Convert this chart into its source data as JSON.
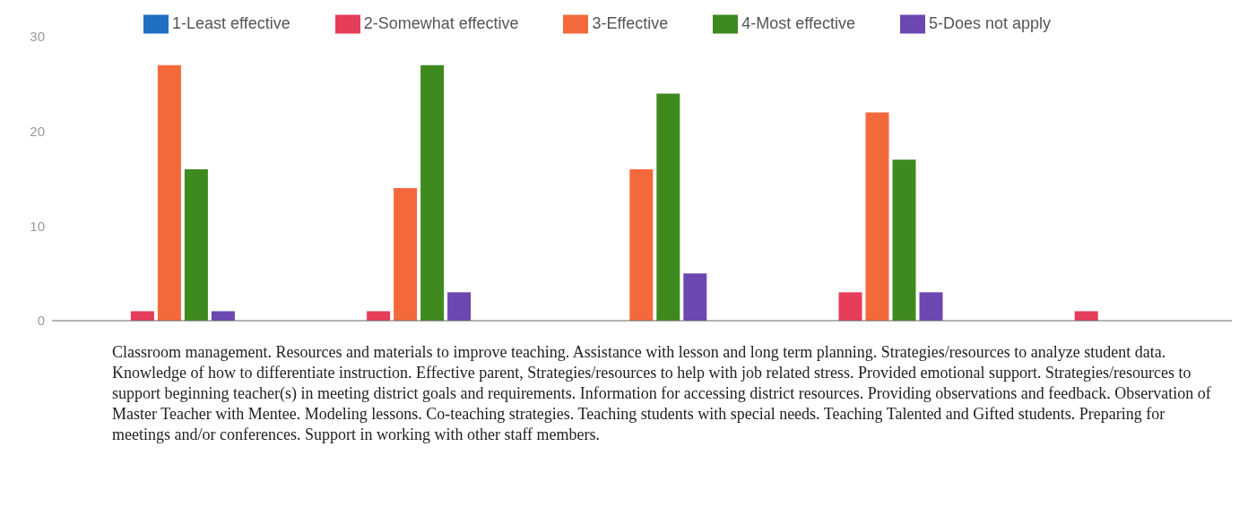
{
  "chart_data": {
    "type": "bar",
    "categories": [
      null,
      null,
      null,
      null,
      null
    ],
    "series": [
      {
        "name": "1-Least effective",
        "color": "#1f6fc4",
        "values": [
          0,
          0,
          0,
          0,
          null
        ]
      },
      {
        "name": "2-Somewhat effective",
        "color": "#e63d5a",
        "values": [
          1,
          1,
          0,
          3,
          1
        ]
      },
      {
        "name": "3-Effective",
        "color": "#f4693c",
        "values": [
          27,
          14,
          16,
          22,
          null
        ]
      },
      {
        "name": "4-Most effective",
        "color": "#3f8a1f",
        "values": [
          16,
          27,
          24,
          17,
          null
        ]
      },
      {
        "name": "5-Does not apply",
        "color": "#6a48b0",
        "values": [
          1,
          3,
          5,
          3,
          null
        ]
      }
    ],
    "ylim": [
      0,
      30
    ],
    "yticks": [
      0,
      10,
      20,
      30
    ],
    "grid": false,
    "legend": "top",
    "annotations": [
      "Classroom management. Resources and materials to improve teaching. Assistance with lesson and long term planning. Strategies/resources to analyze student data. Knowledge of how to differentiate instruction. Effective parent, Strategies/resources to help with job related stress. Provided emotional support. Strategies/resources to support beginning teacher(s) in meeting district goals and requirements. Information for accessing district resources. Providing observations and feedback. Observation of Master Teacher with Mentee. Modeling lessons. Co-teaching strategies. Teaching students with special needs. Teaching Talented and Gifted students. Preparing for meetings and/or conferences. Support in working with other staff members."
    ]
  }
}
